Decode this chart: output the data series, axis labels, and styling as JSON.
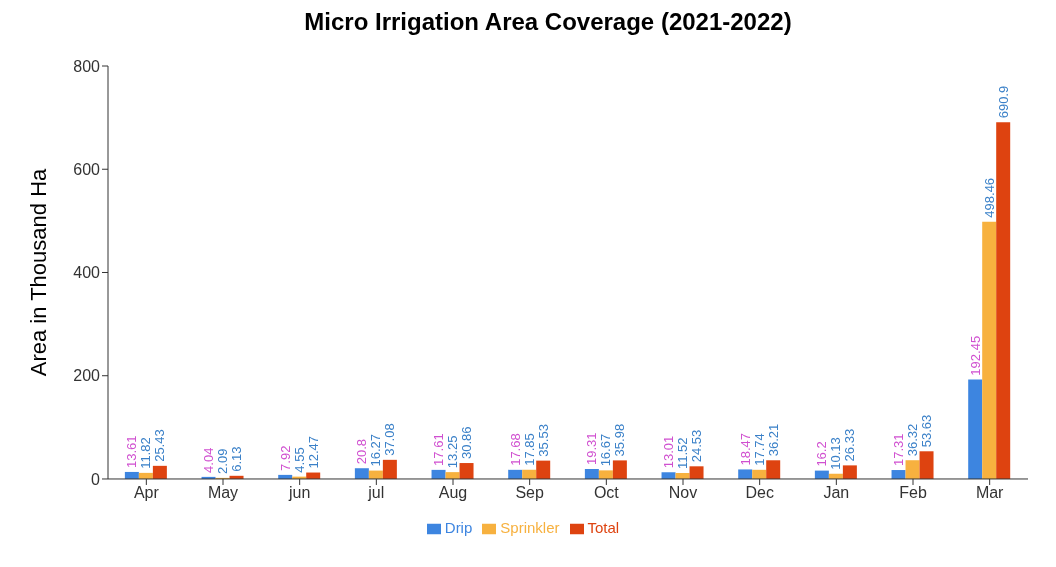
{
  "chart_data": {
    "type": "bar",
    "title": "Micro Irrigation Area Coverage (2021-2022)",
    "ylabel": "Area in Thousand Ha",
    "categories": [
      "Apr",
      "May",
      "jun",
      "jul",
      "Aug",
      "Sep",
      "Oct",
      "Nov",
      "Dec",
      "Jan",
      "Feb",
      "Mar"
    ],
    "series": [
      {
        "name": "Drip",
        "color": "#3d85e0",
        "values": [
          13.61,
          4.04,
          7.92,
          20.8,
          17.61,
          17.68,
          19.31,
          13.01,
          18.47,
          16.2,
          17.31,
          192.45
        ]
      },
      {
        "name": "Sprinkler",
        "color": "#f7b13f",
        "values": [
          11.82,
          2.09,
          4.55,
          16.27,
          13.25,
          17.85,
          16.67,
          11.52,
          17.74,
          10.13,
          36.32,
          498.46
        ]
      },
      {
        "name": "Total",
        "color": "#de4310",
        "values": [
          25.43,
          6.13,
          12.47,
          37.08,
          30.86,
          35.53,
          35.98,
          24.53,
          36.21,
          26.33,
          53.63,
          690.9
        ]
      }
    ],
    "ylim": [
      0,
      800
    ],
    "yticks": [
      0,
      200,
      400,
      600,
      800
    ],
    "grid": false,
    "legend": "bottom",
    "data_labels": true
  }
}
